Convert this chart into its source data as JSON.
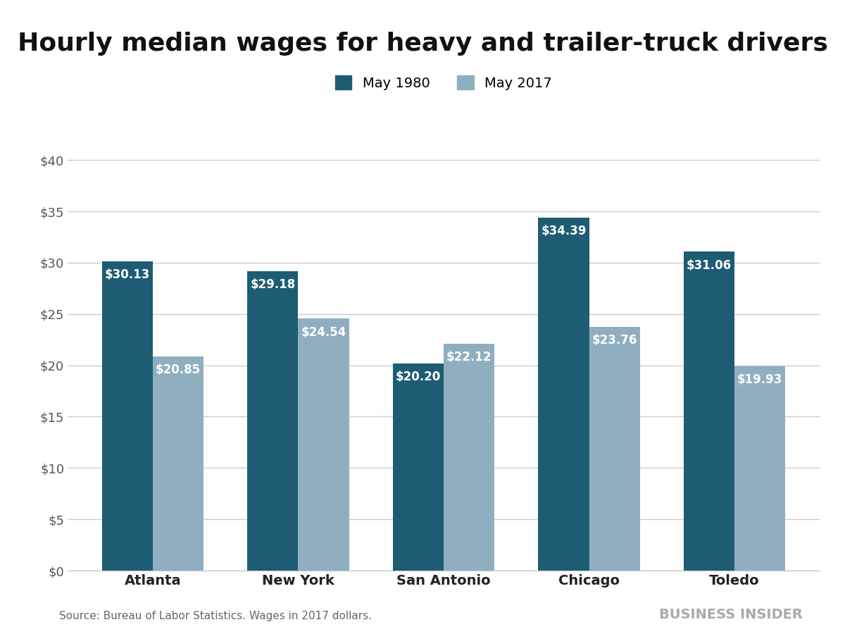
{
  "title": "Hourly median wages for heavy and trailer-truck drivers",
  "categories": [
    "Atlanta",
    "New York",
    "San Antonio",
    "Chicago",
    "Toledo"
  ],
  "values_1980": [
    30.13,
    29.18,
    20.2,
    34.39,
    31.06
  ],
  "values_2017": [
    20.85,
    24.54,
    22.12,
    23.76,
    19.93
  ],
  "labels_1980": [
    "$30.13",
    "$29.18",
    "$20.20",
    "$34.39",
    "$31.06"
  ],
  "labels_2017": [
    "$20.85",
    "$24.54",
    "$22.12",
    "$23.76",
    "$19.93"
  ],
  "color_1980": "#1d5c73",
  "color_2017": "#8fafc0",
  "legend_1980": "May 1980",
  "legend_2017": "May 2017",
  "ylim": [
    0,
    42
  ],
  "yticks": [
    0,
    5,
    10,
    15,
    20,
    25,
    30,
    35,
    40
  ],
  "ytick_labels": [
    "$0",
    "$5",
    "$10",
    "$15",
    "$20",
    "$25",
    "$30",
    "$35",
    "$40"
  ],
  "bar_width": 0.35,
  "background_color": "#ffffff",
  "source_text": "Source: Bureau of Labor Statistics. Wages in 2017 dollars.",
  "brand_text": "BUSINESS INSIDER",
  "title_fontsize": 26,
  "label_fontsize": 12,
  "tick_fontsize": 13,
  "legend_fontsize": 14,
  "source_fontsize": 11,
  "brand_fontsize": 14
}
